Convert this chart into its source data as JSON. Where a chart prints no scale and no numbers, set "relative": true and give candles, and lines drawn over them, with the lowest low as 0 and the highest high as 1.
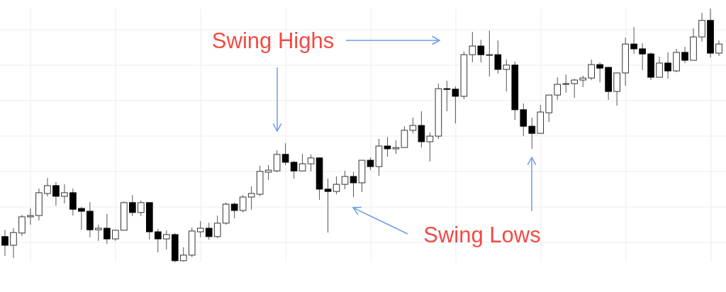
{
  "chart_data": {
    "type": "candlestick",
    "relative": true,
    "grid": true,
    "annotations": [
      "Swing Highs",
      "Swing Lows"
    ],
    "categories": [
      null,
      null,
      null,
      null,
      null,
      null,
      null,
      null,
      null,
      null,
      null,
      null,
      null,
      null,
      null,
      null,
      null,
      null,
      null,
      null,
      null,
      null,
      null,
      null,
      null,
      null,
      null,
      null,
      null,
      null,
      null,
      null,
      null,
      null,
      null,
      null,
      null,
      null,
      null,
      null,
      null,
      null,
      null,
      null,
      null,
      null,
      null,
      null,
      null,
      null,
      null,
      null,
      null,
      null,
      null,
      null,
      null,
      null,
      null,
      null,
      null,
      null,
      null,
      null,
      null,
      null,
      null,
      null,
      null,
      null,
      null,
      null,
      null,
      null,
      null,
      null,
      null,
      null,
      null,
      null,
      null,
      null,
      null,
      null,
      null
    ],
    "ohlc": [
      [
        0.101,
        0.128,
        0.025,
        0.067
      ],
      [
        0.067,
        0.134,
        0.017,
        0.117
      ],
      [
        0.115,
        0.187,
        0.103,
        0.179
      ],
      [
        0.179,
        0.212,
        0.148,
        0.184
      ],
      [
        0.184,
        0.291,
        0.165,
        0.274
      ],
      [
        0.271,
        0.332,
        0.26,
        0.302
      ],
      [
        0.302,
        0.316,
        0.223,
        0.26
      ],
      [
        0.26,
        0.307,
        0.232,
        0.274
      ],
      [
        0.274,
        0.291,
        0.184,
        0.209
      ],
      [
        0.212,
        0.218,
        0.128,
        0.201
      ],
      [
        0.201,
        0.237,
        0.098,
        0.128
      ],
      [
        0.128,
        0.148,
        0.084,
        0.134
      ],
      [
        0.134,
        0.19,
        0.073,
        0.092
      ],
      [
        0.092,
        0.128,
        0.084,
        0.126
      ],
      [
        0.126,
        0.24,
        0.126,
        0.235
      ],
      [
        0.235,
        0.265,
        0.182,
        0.196
      ],
      [
        0.196,
        0.243,
        0.182,
        0.235
      ],
      [
        0.235,
        0.235,
        0.089,
        0.12
      ],
      [
        0.12,
        0.131,
        0.039,
        0.092
      ],
      [
        0.092,
        0.126,
        0.05,
        0.109
      ],
      [
        0.109,
        0.115,
        0,
        0.006
      ],
      [
        0.006,
        0.059,
        0.003,
        0.028
      ],
      [
        0.028,
        0.137,
        0.02,
        0.123
      ],
      [
        0.12,
        0.162,
        0.098,
        0.134
      ],
      [
        0.134,
        0.156,
        0.089,
        0.101
      ],
      [
        0.101,
        0.184,
        0.095,
        0.154
      ],
      [
        0.154,
        0.235,
        0.148,
        0.229
      ],
      [
        0.229,
        0.235,
        0.173,
        0.204
      ],
      [
        0.204,
        0.265,
        0.196,
        0.257
      ],
      [
        0.257,
        0.299,
        0.207,
        0.271
      ],
      [
        0.268,
        0.38,
        0.26,
        0.358
      ],
      [
        0.355,
        0.383,
        0.324,
        0.363
      ],
      [
        0.36,
        0.441,
        0.355,
        0.425
      ],
      [
        0.425,
        0.469,
        0.383,
        0.394
      ],
      [
        0.394,
        0.399,
        0.33,
        0.36
      ],
      [
        0.36,
        0.427,
        0.36,
        0.388
      ],
      [
        0.388,
        0.425,
        0.358,
        0.411
      ],
      [
        0.411,
        0.413,
        0.246,
        0.288
      ],
      [
        0.288,
        0.33,
        0.117,
        0.279
      ],
      [
        0.279,
        0.338,
        0.268,
        0.307
      ],
      [
        0.307,
        0.36,
        0.288,
        0.338
      ],
      [
        0.338,
        0.355,
        0.257,
        0.313
      ],
      [
        0.313,
        0.402,
        0.277,
        0.402
      ],
      [
        0.402,
        0.413,
        0.363,
        0.377
      ],
      [
        0.377,
        0.486,
        0.341,
        0.458
      ],
      [
        0.458,
        0.494,
        0.416,
        0.447
      ],
      [
        0.447,
        0.48,
        0.427,
        0.452
      ],
      [
        0.452,
        0.536,
        0.452,
        0.52
      ],
      [
        0.52,
        0.57,
        0.508,
        0.539
      ],
      [
        0.539,
        0.595,
        0.452,
        0.475
      ],
      [
        0.475,
        0.511,
        0.397,
        0.497
      ],
      [
        0.497,
        0.704,
        0.486,
        0.684
      ],
      [
        0.684,
        0.715,
        0.595,
        0.682
      ],
      [
        0.682,
        0.693,
        0.547,
        0.654
      ],
      [
        0.654,
        0.83,
        0.642,
        0.818
      ],
      [
        0.818,
        0.908,
        0.788,
        0.852
      ],
      [
        0.852,
        0.877,
        0.788,
        0.818
      ],
      [
        0.818,
        0.913,
        0.732,
        0.818
      ],
      [
        0.818,
        0.874,
        0.743,
        0.76
      ],
      [
        0.76,
        0.799,
        0.673,
        0.777
      ],
      [
        0.777,
        0.791,
        0.561,
        0.601
      ],
      [
        0.601,
        0.626,
        0.497,
        0.536
      ],
      [
        0.536,
        0.57,
        0.447,
        0.508
      ],
      [
        0.508,
        0.62,
        0.508,
        0.592
      ],
      [
        0.589,
        0.659,
        0.553,
        0.659
      ],
      [
        0.659,
        0.729,
        0.64,
        0.701
      ],
      [
        0.701,
        0.74,
        0.668,
        0.704
      ],
      [
        0.704,
        0.723,
        0.648,
        0.718
      ],
      [
        0.718,
        0.735,
        0.69,
        0.726
      ],
      [
        0.726,
        0.799,
        0.718,
        0.779
      ],
      [
        0.779,
        0.788,
        0.709,
        0.765
      ],
      [
        0.768,
        0.771,
        0.64,
        0.673
      ],
      [
        0.673,
        0.746,
        0.617,
        0.746
      ],
      [
        0.746,
        0.885,
        0.695,
        0.86
      ],
      [
        0.86,
        0.927,
        0.821,
        0.841
      ],
      [
        0.841,
        0.863,
        0.757,
        0.821
      ],
      [
        0.821,
        0.827,
        0.718,
        0.729
      ],
      [
        0.729,
        0.81,
        0.729,
        0.785
      ],
      [
        0.785,
        0.827,
        0.723,
        0.754
      ],
      [
        0.754,
        0.841,
        0.749,
        0.827
      ],
      [
        0.827,
        0.849,
        0.785,
        0.796
      ],
      [
        0.796,
        0.922,
        0.796,
        0.888
      ],
      [
        0.888,
        0.983,
        0.869,
        0.953
      ],
      [
        0.953,
        1,
        0.807,
        0.824
      ],
      [
        0.824,
        0.874,
        0.813,
        0.86
      ]
    ]
  }
}
